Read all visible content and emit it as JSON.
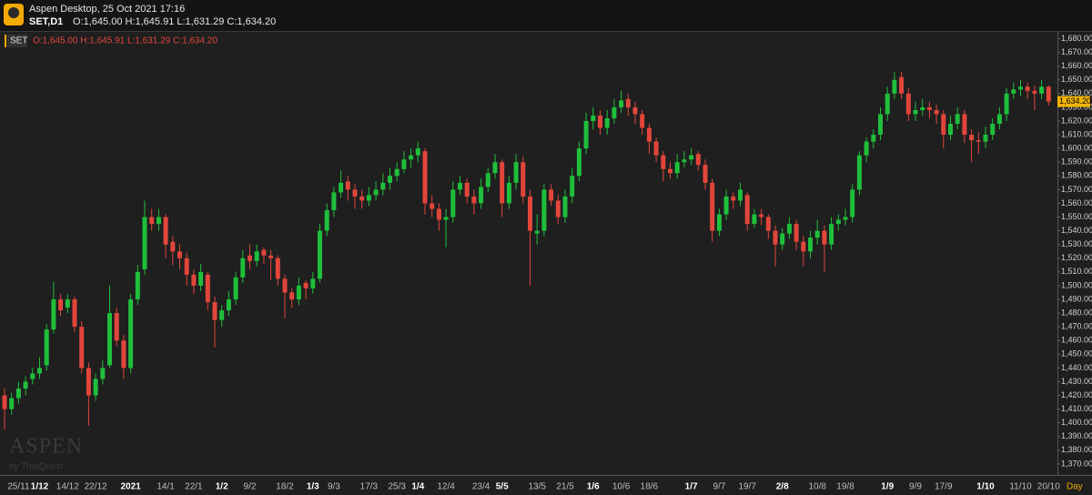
{
  "header": {
    "app": "Aspen Desktop, 25 Oct 2021 17:16",
    "symbol": "SET,D1",
    "quote": "O:1,645.00 H:1,645.91 L:1,631.29 C:1,634.20"
  },
  "legend": {
    "symbol": "SET",
    "quote": "O:1,645.00 H:1,645.91 L:1,631.29 C:1,634.20"
  },
  "watermark": {
    "brand": "ASPEN",
    "by": "by ThaiQuest"
  },
  "chart_data": {
    "type": "candlestick",
    "up_color": "#1fbf3c",
    "down_color": "#e2463b",
    "period_label": "Day",
    "last_value_label": "1,634.20",
    "ylim": [
      1362,
      1685
    ],
    "yticks": [
      {
        "value": 1370,
        "label": "1,370.00"
      },
      {
        "value": 1380,
        "label": "1,380.00"
      },
      {
        "value": 1390,
        "label": "1,390.00"
      },
      {
        "value": 1400,
        "label": "1,400.00"
      },
      {
        "value": 1410,
        "label": "1,410.00"
      },
      {
        "value": 1420,
        "label": "1,420.00"
      },
      {
        "value": 1430,
        "label": "1,430.00"
      },
      {
        "value": 1440,
        "label": "1,440.00"
      },
      {
        "value": 1450,
        "label": "1,450.00"
      },
      {
        "value": 1460,
        "label": "1,460.00"
      },
      {
        "value": 1470,
        "label": "1,470.00"
      },
      {
        "value": 1480,
        "label": "1,480.00"
      },
      {
        "value": 1490,
        "label": "1,490.00"
      },
      {
        "value": 1500,
        "label": "1,500.00"
      },
      {
        "value": 1510,
        "label": "1,510.00"
      },
      {
        "value": 1520,
        "label": "1,520.00"
      },
      {
        "value": 1530,
        "label": "1,530.00"
      },
      {
        "value": 1540,
        "label": "1,540.00"
      },
      {
        "value": 1550,
        "label": "1,550.00"
      },
      {
        "value": 1560,
        "label": "1,560.00"
      },
      {
        "value": 1570,
        "label": "1,570.00"
      },
      {
        "value": 1580,
        "label": "1,580.00"
      },
      {
        "value": 1590,
        "label": "1,590.00"
      },
      {
        "value": 1600,
        "label": "1,600.00"
      },
      {
        "value": 1610,
        "label": "1,610.00"
      },
      {
        "value": 1620,
        "label": "1,620.00"
      },
      {
        "value": 1630,
        "label": "1,630.00"
      },
      {
        "value": 1640,
        "label": "1,640.00"
      },
      {
        "value": 1650,
        "label": "1,650.00"
      },
      {
        "value": 1660,
        "label": "1,660.00"
      },
      {
        "value": 1670,
        "label": "1,670.00"
      },
      {
        "value": 1680,
        "label": "1,680.00"
      }
    ],
    "major_ticks": [
      5,
      18,
      31,
      44,
      59,
      71,
      84,
      98,
      111,
      126,
      140
    ],
    "categories": [
      null,
      null,
      "25/11",
      null,
      null,
      "1/12",
      null,
      null,
      null,
      "14/12",
      null,
      null,
      null,
      "22/12",
      null,
      null,
      null,
      null,
      "2021",
      null,
      null,
      null,
      null,
      "14/1",
      null,
      null,
      null,
      "22/1",
      null,
      null,
      null,
      "1/2",
      null,
      null,
      null,
      "9/2",
      null,
      null,
      null,
      null,
      "18/2",
      null,
      null,
      null,
      "1/3",
      null,
      null,
      "9/3",
      null,
      null,
      null,
      null,
      "17/3",
      null,
      null,
      null,
      "25/3",
      null,
      null,
      "1/4",
      null,
      null,
      null,
      "12/4",
      null,
      null,
      null,
      null,
      "23/4",
      null,
      null,
      "5/5",
      null,
      null,
      null,
      null,
      "13/5",
      null,
      null,
      null,
      "21/5",
      null,
      null,
      null,
      "1/6",
      null,
      null,
      null,
      "10/6",
      null,
      null,
      null,
      "18/6",
      null,
      null,
      null,
      null,
      null,
      "1/7",
      null,
      null,
      null,
      "9/7",
      null,
      null,
      null,
      "19/7",
      null,
      null,
      null,
      null,
      "2/8",
      null,
      null,
      null,
      null,
      "10/8",
      null,
      null,
      null,
      "19/8",
      null,
      null,
      null,
      null,
      null,
      "1/9",
      null,
      null,
      null,
      "9/9",
      null,
      null,
      null,
      "17/9",
      null,
      null,
      null,
      null,
      null,
      "1/10",
      null,
      null,
      null,
      null,
      "11/10",
      null,
      null,
      null,
      "20/10"
    ],
    "ohlc": [
      [
        1420,
        1425,
        1395,
        1410
      ],
      [
        1410,
        1422,
        1406,
        1418
      ],
      [
        1418,
        1430,
        1414,
        1425
      ],
      [
        1425,
        1434,
        1420,
        1430
      ],
      [
        1432,
        1440,
        1428,
        1436
      ],
      [
        1436,
        1448,
        1432,
        1440
      ],
      [
        1442,
        1472,
        1438,
        1468
      ],
      [
        1468,
        1503,
        1465,
        1490
      ],
      [
        1490,
        1494,
        1478,
        1482
      ],
      [
        1484,
        1494,
        1480,
        1490
      ],
      [
        1490,
        1492,
        1466,
        1470
      ],
      [
        1470,
        1474,
        1436,
        1440
      ],
      [
        1440,
        1444,
        1398,
        1420
      ],
      [
        1420,
        1436,
        1416,
        1432
      ],
      [
        1432,
        1446,
        1428,
        1440
      ],
      [
        1442,
        1500,
        1440,
        1480
      ],
      [
        1480,
        1484,
        1456,
        1460
      ],
      [
        1460,
        1464,
        1432,
        1440
      ],
      [
        1440,
        1494,
        1436,
        1490
      ],
      [
        1490,
        1515,
        1486,
        1510
      ],
      [
        1512,
        1562,
        1508,
        1550
      ],
      [
        1550,
        1556,
        1540,
        1545
      ],
      [
        1545,
        1556,
        1540,
        1550
      ],
      [
        1550,
        1552,
        1520,
        1530
      ],
      [
        1532,
        1536,
        1515,
        1525
      ],
      [
        1525,
        1530,
        1512,
        1520
      ],
      [
        1520,
        1524,
        1500,
        1508
      ],
      [
        1508,
        1512,
        1494,
        1500
      ],
      [
        1500,
        1516,
        1496,
        1510
      ],
      [
        1508,
        1510,
        1482,
        1488
      ],
      [
        1488,
        1492,
        1455,
        1475
      ],
      [
        1475,
        1486,
        1470,
        1482
      ],
      [
        1482,
        1496,
        1478,
        1490
      ],
      [
        1490,
        1510,
        1486,
        1506
      ],
      [
        1506,
        1526,
        1502,
        1520
      ],
      [
        1522,
        1530,
        1512,
        1518
      ],
      [
        1518,
        1530,
        1514,
        1525
      ],
      [
        1526,
        1528,
        1516,
        1522
      ],
      [
        1522,
        1526,
        1504,
        1520
      ],
      [
        1520,
        1522,
        1500,
        1505
      ],
      [
        1505,
        1508,
        1476,
        1495
      ],
      [
        1495,
        1498,
        1484,
        1490
      ],
      [
        1490,
        1506,
        1486,
        1500
      ],
      [
        1502,
        1504,
        1490,
        1498
      ],
      [
        1498,
        1510,
        1494,
        1505
      ],
      [
        1505,
        1545,
        1502,
        1540
      ],
      [
        1540,
        1560,
        1536,
        1555
      ],
      [
        1555,
        1572,
        1550,
        1568
      ],
      [
        1568,
        1584,
        1564,
        1575
      ],
      [
        1576,
        1580,
        1562,
        1570
      ],
      [
        1570,
        1574,
        1556,
        1565
      ],
      [
        1565,
        1570,
        1556,
        1562
      ],
      [
        1562,
        1572,
        1558,
        1566
      ],
      [
        1566,
        1576,
        1562,
        1570
      ],
      [
        1570,
        1582,
        1566,
        1575
      ],
      [
        1575,
        1586,
        1570,
        1580
      ],
      [
        1580,
        1590,
        1576,
        1585
      ],
      [
        1585,
        1598,
        1582,
        1592
      ],
      [
        1592,
        1600,
        1586,
        1595
      ],
      [
        1595,
        1605,
        1590,
        1600
      ],
      [
        1598,
        1600,
        1552,
        1560
      ],
      [
        1560,
        1566,
        1550,
        1556
      ],
      [
        1556,
        1560,
        1540,
        1548
      ],
      [
        1548,
        1556,
        1528,
        1550
      ],
      [
        1550,
        1576,
        1546,
        1570
      ],
      [
        1570,
        1580,
        1566,
        1575
      ],
      [
        1575,
        1578,
        1560,
        1565
      ],
      [
        1565,
        1570,
        1552,
        1560
      ],
      [
        1560,
        1578,
        1556,
        1572
      ],
      [
        1572,
        1586,
        1568,
        1582
      ],
      [
        1582,
        1596,
        1578,
        1590
      ],
      [
        1590,
        1592,
        1550,
        1560
      ],
      [
        1560,
        1580,
        1556,
        1575
      ],
      [
        1575,
        1596,
        1570,
        1590
      ],
      [
        1590,
        1594,
        1560,
        1565
      ],
      [
        1565,
        1570,
        1500,
        1540
      ],
      [
        1538,
        1552,
        1530,
        1540
      ],
      [
        1540,
        1574,
        1536,
        1570
      ],
      [
        1570,
        1574,
        1558,
        1562
      ],
      [
        1562,
        1566,
        1545,
        1550
      ],
      [
        1550,
        1570,
        1546,
        1565
      ],
      [
        1565,
        1586,
        1560,
        1580
      ],
      [
        1580,
        1605,
        1576,
        1600
      ],
      [
        1600,
        1626,
        1596,
        1620
      ],
      [
        1620,
        1630,
        1614,
        1624
      ],
      [
        1624,
        1628,
        1610,
        1615
      ],
      [
        1615,
        1628,
        1610,
        1622
      ],
      [
        1622,
        1636,
        1618,
        1630
      ],
      [
        1630,
        1642,
        1626,
        1635
      ],
      [
        1636,
        1640,
        1624,
        1630
      ],
      [
        1630,
        1634,
        1618,
        1625
      ],
      [
        1625,
        1628,
        1610,
        1615
      ],
      [
        1615,
        1618,
        1596,
        1605
      ],
      [
        1605,
        1608,
        1590,
        1595
      ],
      [
        1595,
        1598,
        1576,
        1585
      ],
      [
        1585,
        1590,
        1578,
        1582
      ],
      [
        1582,
        1596,
        1578,
        1590
      ],
      [
        1590,
        1598,
        1586,
        1592
      ],
      [
        1592,
        1600,
        1588,
        1595
      ],
      [
        1596,
        1598,
        1584,
        1588
      ],
      [
        1588,
        1592,
        1570,
        1575
      ],
      [
        1575,
        1578,
        1532,
        1540
      ],
      [
        1540,
        1556,
        1536,
        1552
      ],
      [
        1552,
        1570,
        1548,
        1565
      ],
      [
        1565,
        1568,
        1556,
        1562
      ],
      [
        1562,
        1575,
        1558,
        1570
      ],
      [
        1566,
        1568,
        1540,
        1545
      ],
      [
        1545,
        1556,
        1542,
        1552
      ],
      [
        1552,
        1556,
        1544,
        1550
      ],
      [
        1550,
        1552,
        1534,
        1540
      ],
      [
        1540,
        1544,
        1514,
        1530
      ],
      [
        1530,
        1542,
        1526,
        1538
      ],
      [
        1538,
        1550,
        1534,
        1545
      ],
      [
        1545,
        1548,
        1526,
        1532
      ],
      [
        1532,
        1536,
        1514,
        1525
      ],
      [
        1525,
        1540,
        1520,
        1535
      ],
      [
        1535,
        1548,
        1530,
        1540
      ],
      [
        1540,
        1544,
        1510,
        1530
      ],
      [
        1530,
        1550,
        1526,
        1545
      ],
      [
        1545,
        1552,
        1540,
        1548
      ],
      [
        1548,
        1556,
        1544,
        1550
      ],
      [
        1550,
        1574,
        1546,
        1570
      ],
      [
        1570,
        1598,
        1566,
        1595
      ],
      [
        1595,
        1608,
        1590,
        1605
      ],
      [
        1605,
        1614,
        1600,
        1610
      ],
      [
        1610,
        1630,
        1606,
        1625
      ],
      [
        1625,
        1645,
        1620,
        1640
      ],
      [
        1640,
        1656,
        1636,
        1650
      ],
      [
        1652,
        1656,
        1636,
        1640
      ],
      [
        1640,
        1644,
        1620,
        1625
      ],
      [
        1625,
        1634,
        1620,
        1628
      ],
      [
        1628,
        1636,
        1624,
        1630
      ],
      [
        1630,
        1634,
        1622,
        1628
      ],
      [
        1628,
        1632,
        1618,
        1625
      ],
      [
        1625,
        1628,
        1600,
        1610
      ],
      [
        1610,
        1624,
        1606,
        1618
      ],
      [
        1618,
        1630,
        1614,
        1625
      ],
      [
        1625,
        1628,
        1604,
        1610
      ],
      [
        1610,
        1614,
        1590,
        1606
      ],
      [
        1606,
        1612,
        1596,
        1605
      ],
      [
        1605,
        1616,
        1600,
        1610
      ],
      [
        1610,
        1622,
        1606,
        1618
      ],
      [
        1618,
        1630,
        1614,
        1625
      ],
      [
        1625,
        1644,
        1620,
        1640
      ],
      [
        1640,
        1648,
        1636,
        1643
      ],
      [
        1643,
        1650,
        1638,
        1645
      ],
      [
        1645,
        1648,
        1636,
        1642
      ],
      [
        1642,
        1646,
        1628,
        1640
      ],
      [
        1640,
        1650,
        1636,
        1645
      ],
      [
        1645,
        1645.91,
        1631.29,
        1634.2
      ]
    ]
  }
}
